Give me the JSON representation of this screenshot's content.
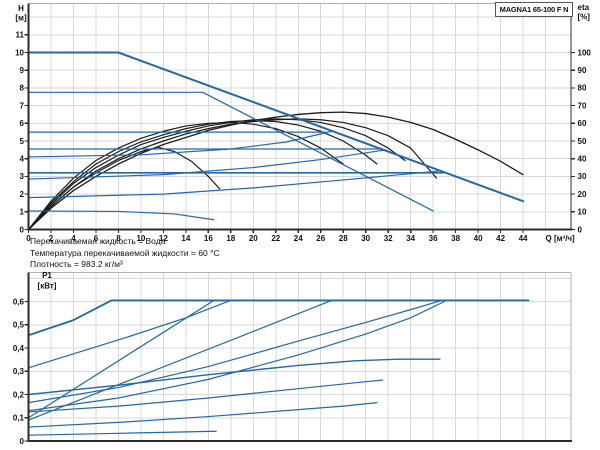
{
  "title_box": {
    "label": "MAGNA1 65-100 F N"
  },
  "conditions": [
    "Перекачиваемая жидкость = Вода",
    "Температура перекачиваемой жидкости = 60 °C",
    "Плотность = 983.2 кг/м³"
  ],
  "colors": {
    "curve_blue": "#2368a8",
    "curve_black": "#1c1c1c",
    "grid": "#d8d8d8",
    "frame_light": "#b0b0b0",
    "axis_dark": "#2b2b2b",
    "text": "#111111"
  },
  "chart_data": [
    {
      "type": "line",
      "name": "qh-efficiency-chart",
      "title": "MAGNA1 65-100 F N",
      "xlabel": "Q [м³/ч]",
      "ylabel_left": [
        "H",
        "[м]"
      ],
      "ylabel_right": [
        "eta",
        "[%]"
      ],
      "xlim": [
        0,
        48.3
      ],
      "ylim_left": [
        0,
        12.8
      ],
      "ylim_right": [
        0,
        128
      ],
      "x_ticks": [
        0,
        2,
        4,
        6,
        8,
        10,
        12,
        14,
        16,
        18,
        20,
        22,
        24,
        26,
        28,
        30,
        32,
        34,
        36,
        38,
        40,
        42,
        44
      ],
      "y_ticks_left": [
        0,
        1,
        2,
        3,
        4,
        5,
        6,
        7,
        8,
        9,
        10,
        11
      ],
      "y_ticks_right": [
        0,
        10,
        20,
        30,
        40,
        50,
        60,
        70,
        80,
        90,
        100
      ],
      "grid": true,
      "h_curves": [
        {
          "name": "max-curve",
          "width": 2,
          "points": [
            [
              0,
              10
            ],
            [
              8,
              10
            ],
            [
              44,
              1.6
            ]
          ]
        },
        {
          "name": "speed-curve-2",
          "width": 1.2,
          "points": [
            [
              0,
              7.75
            ],
            [
              15.5,
              7.75
            ],
            [
              36,
              1.05
            ]
          ]
        },
        {
          "name": "const-pressure-5.5",
          "width": 1.2,
          "points": [
            [
              0,
              5.5
            ],
            [
              26.4,
              5.5
            ]
          ]
        },
        {
          "name": "const-pressure-4.55",
          "width": 1.2,
          "points": [
            [
              0,
              4.55
            ],
            [
              31.5,
              4.55
            ]
          ]
        },
        {
          "name": "const-pressure-3.2",
          "width": 1.6,
          "points": [
            [
              0,
              3.2
            ],
            [
              36.9,
              3.2
            ]
          ]
        },
        {
          "name": "prop-pressure-1",
          "width": 1.2,
          "points": [
            [
              0,
              4.1
            ],
            [
              10,
              4.22
            ],
            [
              18,
              4.55
            ],
            [
              23,
              4.95
            ],
            [
              27,
              5.55
            ]
          ]
        },
        {
          "name": "prop-pressure-2",
          "width": 1.2,
          "points": [
            [
              0,
              2.85
            ],
            [
              12,
              3.1
            ],
            [
              20,
              3.5
            ],
            [
              26,
              3.95
            ],
            [
              31.8,
              4.5
            ]
          ]
        },
        {
          "name": "prop-pressure-3",
          "width": 1.2,
          "points": [
            [
              0,
              1.8
            ],
            [
              12,
              2.0
            ],
            [
              20,
              2.35
            ],
            [
              28,
              2.8
            ],
            [
              36.5,
              3.3
            ]
          ]
        },
        {
          "name": "min-curve",
          "width": 1.2,
          "points": [
            [
              0,
              1.05
            ],
            [
              8,
              1.02
            ],
            [
              13,
              0.88
            ],
            [
              16.5,
              0.55
            ]
          ]
        }
      ],
      "eta_curves": [
        {
          "name": "eta-max",
          "width": 1.3,
          "points": [
            [
              0,
              0
            ],
            [
              2,
              12
            ],
            [
              4,
              22
            ],
            [
              6,
              30
            ],
            [
              8,
              37
            ],
            [
              10,
              43
            ],
            [
              12,
              48
            ],
            [
              14,
              52
            ],
            [
              16,
              56
            ],
            [
              18,
              59
            ],
            [
              20,
              61.5
            ],
            [
              22,
              63.5
            ],
            [
              24,
              65
            ],
            [
              26,
              66
            ],
            [
              28,
              66.3
            ],
            [
              30,
              65.5
            ],
            [
              32,
              63.5
            ],
            [
              34,
              60.5
            ],
            [
              36,
              56.5
            ],
            [
              38,
              51
            ],
            [
              40,
              45
            ],
            [
              42,
              38.5
            ],
            [
              44,
              31
            ]
          ]
        },
        {
          "name": "eta-2",
          "width": 1.2,
          "points": [
            [
              0,
              0
            ],
            [
              2,
              13
            ],
            [
              4,
              24
            ],
            [
              6,
              33
            ],
            [
              8,
              40
            ],
            [
              10,
              45.5
            ],
            [
              12,
              50
            ],
            [
              14,
              54
            ],
            [
              16,
              57
            ],
            [
              18,
              59.5
            ],
            [
              20,
              61
            ],
            [
              22,
              62
            ],
            [
              24,
              62.5
            ],
            [
              26,
              62
            ],
            [
              28,
              60.5
            ],
            [
              30,
              57.5
            ],
            [
              32,
              53
            ],
            [
              34,
              46
            ],
            [
              36.3,
              29
            ]
          ]
        },
        {
          "name": "eta-3",
          "width": 1.2,
          "points": [
            [
              0,
              0
            ],
            [
              2,
              14
            ],
            [
              4,
              26
            ],
            [
              6,
              35
            ],
            [
              8,
              42
            ],
            [
              10,
              48
            ],
            [
              12,
              52
            ],
            [
              14,
              55.5
            ],
            [
              16,
              58.5
            ],
            [
              18,
              60.5
            ],
            [
              20,
              62
            ],
            [
              22,
              62.5
            ],
            [
              24,
              62
            ],
            [
              26,
              60.5
            ],
            [
              28,
              57.5
            ],
            [
              30,
              53
            ],
            [
              32,
              46
            ],
            [
              33.5,
              39
            ]
          ]
        },
        {
          "name": "eta-4",
          "width": 1.2,
          "points": [
            [
              0,
              0
            ],
            [
              2,
              15
            ],
            [
              4,
              27
            ],
            [
              6,
              37
            ],
            [
              8,
              44
            ],
            [
              10,
              49.5
            ],
            [
              12,
              53.5
            ],
            [
              14,
              57
            ],
            [
              16,
              59.5
            ],
            [
              18,
              61
            ],
            [
              20,
              61.5
            ],
            [
              22,
              61
            ],
            [
              24,
              59
            ],
            [
              26,
              55.5
            ],
            [
              28,
              50
            ],
            [
              30,
              42
            ],
            [
              31,
              37
            ]
          ]
        },
        {
          "name": "eta-5",
          "width": 1.2,
          "points": [
            [
              0,
              0
            ],
            [
              2,
              16
            ],
            [
              4,
              29
            ],
            [
              6,
              39
            ],
            [
              8,
              46
            ],
            [
              10,
              51.5
            ],
            [
              12,
              55.5
            ],
            [
              14,
              58.5
            ],
            [
              16,
              60
            ],
            [
              18,
              60.5
            ],
            [
              20,
              59.5
            ],
            [
              22,
              57
            ],
            [
              24,
              52.5
            ],
            [
              26,
              46
            ],
            [
              28,
              37
            ]
          ]
        },
        {
          "name": "eta-min",
          "width": 1.2,
          "points": [
            [
              0,
              0
            ],
            [
              2,
              13
            ],
            [
              4,
              24
            ],
            [
              6,
              32
            ],
            [
              8,
              39
            ],
            [
              10,
              44
            ],
            [
              11.5,
              46.5
            ],
            [
              13,
              44
            ],
            [
              14.5,
              38.5
            ],
            [
              16,
              30
            ],
            [
              17,
              23
            ]
          ]
        }
      ]
    },
    {
      "type": "line",
      "name": "power-chart",
      "ylabel_left": [
        "P1",
        "[кВт]"
      ],
      "xlim": [
        0,
        48.3
      ],
      "ylim": [
        0,
        0.725
      ],
      "y_ticks": [
        0,
        0.1,
        0.2,
        0.3,
        0.4,
        0.5,
        0.6
      ],
      "y_tick_labels": [
        "0",
        "0,1",
        "0,2",
        "0,3",
        "0,4",
        "0,5",
        "0,6"
      ],
      "grid": true,
      "p_curves": [
        {
          "name": "p-max",
          "width": 1.8,
          "points": [
            [
              0,
              0.455
            ],
            [
              4,
              0.52
            ],
            [
              7.4,
              0.605
            ],
            [
              44.5,
              0.605
            ]
          ]
        },
        {
          "name": "p-2",
          "width": 1.2,
          "points": [
            [
              0,
              0.315
            ],
            [
              9,
              0.45
            ],
            [
              14,
              0.53
            ],
            [
              18,
              0.605
            ]
          ]
        },
        {
          "name": "p-3",
          "width": 1.2,
          "points": [
            [
              0,
              0.1
            ],
            [
              16.5,
              0.605
            ]
          ]
        },
        {
          "name": "p-4",
          "width": 1.2,
          "points": [
            [
              0,
              0.09
            ],
            [
              27,
              0.605
            ]
          ]
        },
        {
          "name": "p-5",
          "width": 1.2,
          "points": [
            [
              0,
              0.165
            ],
            [
              8,
              0.23
            ],
            [
              16,
              0.32
            ],
            [
              24,
              0.43
            ],
            [
              30,
              0.51
            ],
            [
              34,
              0.565
            ],
            [
              36.8,
              0.605
            ]
          ]
        },
        {
          "name": "p-6",
          "width": 1.2,
          "points": [
            [
              0,
              0.13
            ],
            [
              8,
              0.185
            ],
            [
              16,
              0.265
            ],
            [
              24,
              0.37
            ],
            [
              30,
              0.46
            ],
            [
              34,
              0.53
            ],
            [
              37,
              0.6
            ]
          ]
        },
        {
          "name": "p-7",
          "width": 1.4,
          "points": [
            [
              0,
              0.2
            ],
            [
              8,
              0.24
            ],
            [
              16,
              0.285
            ],
            [
              24,
              0.325
            ],
            [
              29,
              0.345
            ],
            [
              33,
              0.352
            ],
            [
              36.6,
              0.352
            ]
          ]
        },
        {
          "name": "p-8",
          "width": 1.2,
          "points": [
            [
              0,
              0.125
            ],
            [
              8,
              0.15
            ],
            [
              16,
              0.185
            ],
            [
              24,
              0.225
            ],
            [
              30,
              0.255
            ],
            [
              31.5,
              0.262
            ]
          ]
        },
        {
          "name": "p-9",
          "width": 1.2,
          "points": [
            [
              0,
              0.06
            ],
            [
              8,
              0.08
            ],
            [
              16,
              0.105
            ],
            [
              24,
              0.135
            ],
            [
              28,
              0.15
            ],
            [
              31,
              0.165
            ]
          ]
        },
        {
          "name": "p-10",
          "width": 1.2,
          "points": [
            [
              0,
              0.025
            ],
            [
              8,
              0.033
            ],
            [
              16.7,
              0.042
            ]
          ]
        }
      ]
    }
  ]
}
